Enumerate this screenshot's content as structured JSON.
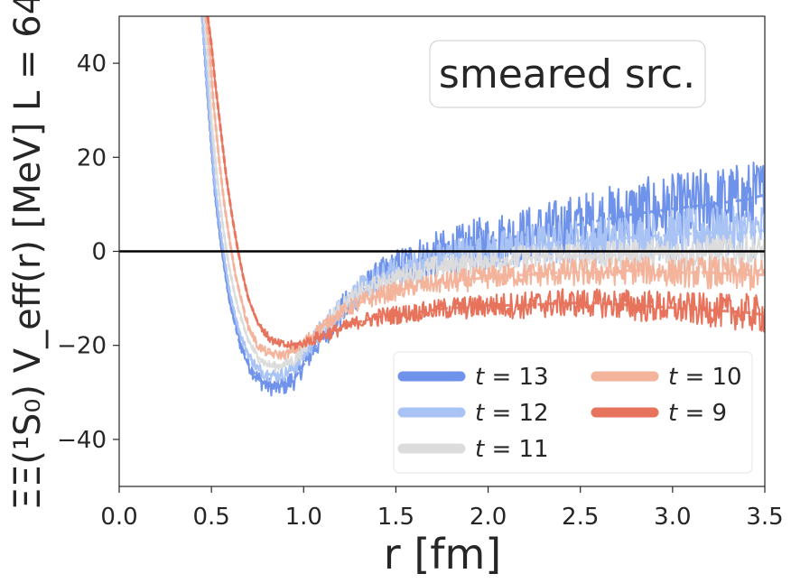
{
  "chart_data": {
    "type": "line",
    "xlabel": "r [fm]",
    "ylabel": "ΞΞ(¹S₀) V_eff(r) [MeV] L = 64",
    "xlim": [
      0.0,
      3.5
    ],
    "ylim": [
      -50,
      50
    ],
    "xticks": [
      "0.0",
      "0.5",
      "1.0",
      "1.5",
      "2.0",
      "2.5",
      "3.0",
      "3.5"
    ],
    "xtick_values": [
      0.0,
      0.5,
      1.0,
      1.5,
      2.0,
      2.5,
      3.0,
      3.5
    ],
    "yticks": [
      "−40",
      "−20",
      "0",
      "20",
      "40"
    ],
    "ytick_values": [
      -40,
      -20,
      0,
      20,
      40
    ],
    "reference_line_y": 0,
    "grid": false,
    "annotation": "smeared src.",
    "legend_position": "lower-right",
    "legend_columns": 2,
    "colors": {
      "t13": "#6f92ea",
      "t12": "#a9c3f5",
      "t11": "#dcdcdc",
      "t10": "#f4b39b",
      "t9": "#e7735c",
      "zero_line": "#000000",
      "axes": "#262626"
    },
    "series": [
      {
        "key": "t13",
        "name": "t = 13",
        "name_t": "t",
        "name_value": "13",
        "x": [
          0.45,
          0.47,
          0.5,
          0.52,
          0.55,
          0.58,
          0.6,
          0.65,
          0.7,
          0.75,
          0.8,
          0.85,
          0.9,
          0.95,
          1.0,
          1.1,
          1.2,
          1.3,
          1.4,
          1.5,
          1.6,
          1.7,
          1.8,
          1.9,
          2.0,
          2.2,
          2.4,
          2.6,
          2.8,
          3.0,
          3.2,
          3.4,
          3.5
        ],
        "y": [
          50,
          38,
          22,
          12,
          2,
          -6,
          -11,
          -19,
          -24,
          -27,
          -28.5,
          -29,
          -28.5,
          -27,
          -24,
          -18,
          -13,
          -9,
          -6,
          -4,
          -2,
          -1,
          0,
          1,
          2,
          3.5,
          5,
          6.5,
          8,
          9,
          10,
          11,
          12
        ],
        "noise": [
          0,
          0,
          0,
          0,
          0,
          0,
          0,
          1.5,
          1.5,
          2,
          2,
          2,
          2,
          2.5,
          2.5,
          3,
          3.5,
          3.5,
          4,
          4.5,
          5,
          5,
          5,
          5.5,
          6,
          6,
          6.5,
          7,
          7.5,
          7.5,
          8,
          8,
          8
        ]
      },
      {
        "key": "t12",
        "name": "t = 12",
        "name_t": "t",
        "name_value": "12",
        "x": [
          0.45,
          0.47,
          0.5,
          0.52,
          0.55,
          0.58,
          0.6,
          0.65,
          0.7,
          0.75,
          0.8,
          0.85,
          0.9,
          0.95,
          1.0,
          1.1,
          1.2,
          1.3,
          1.4,
          1.5,
          1.6,
          1.7,
          1.8,
          1.9,
          2.0,
          2.2,
          2.4,
          2.6,
          2.8,
          3.0,
          3.2,
          3.4,
          3.5
        ],
        "y": [
          50,
          40,
          24,
          14,
          4,
          -4,
          -9,
          -17,
          -22,
          -25,
          -26,
          -26.5,
          -26,
          -24.5,
          -22,
          -16.5,
          -12,
          -8.5,
          -6,
          -4.5,
          -3,
          -2,
          -1,
          -0.5,
          0,
          1,
          2,
          2.5,
          3,
          3.5,
          4,
          4,
          4.5
        ],
        "noise": [
          0,
          0,
          0,
          0,
          0,
          0,
          0,
          1,
          1,
          1.5,
          1.5,
          1.5,
          1.5,
          2,
          2,
          2.5,
          2.5,
          3,
          3,
          3.5,
          3.5,
          3.5,
          4,
          4,
          4,
          4.5,
          4.5,
          5,
          5,
          5.5,
          5.5,
          5.5,
          6
        ]
      },
      {
        "key": "t11",
        "name": "t = 11",
        "name_t": "t",
        "name_value": "11",
        "x": [
          0.46,
          0.48,
          0.5,
          0.53,
          0.56,
          0.59,
          0.62,
          0.65,
          0.7,
          0.75,
          0.8,
          0.85,
          0.9,
          0.95,
          1.0,
          1.1,
          1.2,
          1.3,
          1.4,
          1.5,
          1.6,
          1.7,
          1.8,
          1.9,
          2.0,
          2.2,
          2.4,
          2.6,
          2.8,
          3.0,
          3.2,
          3.4,
          3.5
        ],
        "y": [
          50,
          42,
          28,
          16,
          6,
          -2,
          -8,
          -13,
          -19,
          -22.5,
          -24,
          -24.5,
          -24,
          -23,
          -21,
          -16,
          -12,
          -9,
          -7,
          -5.5,
          -4.5,
          -3.5,
          -3,
          -2.5,
          -2,
          -1.5,
          -1,
          -1,
          -0.5,
          -0.5,
          0,
          0,
          0
        ],
        "noise": [
          0,
          0,
          0,
          0,
          0,
          0,
          0,
          0.5,
          1,
          1,
          1,
          1,
          1,
          1.5,
          1.5,
          1.5,
          2,
          2,
          2,
          2,
          2.5,
          2.5,
          2.5,
          2.5,
          2.5,
          3,
          3,
          3,
          3,
          3.5,
          3.5,
          3.5,
          3.5
        ]
      },
      {
        "key": "t10",
        "name": "t = 10",
        "name_t": "t",
        "name_value": "10",
        "x": [
          0.47,
          0.49,
          0.51,
          0.54,
          0.57,
          0.6,
          0.63,
          0.66,
          0.7,
          0.75,
          0.8,
          0.85,
          0.9,
          0.95,
          1.0,
          1.1,
          1.2,
          1.3,
          1.4,
          1.5,
          1.6,
          1.7,
          1.8,
          1.9,
          2.0,
          2.2,
          2.4,
          2.6,
          2.8,
          3.0,
          3.2,
          3.4,
          3.5
        ],
        "y": [
          50,
          43,
          32,
          20,
          10,
          2,
          -5,
          -10,
          -16,
          -20,
          -21.5,
          -22,
          -22,
          -21,
          -19.5,
          -16,
          -13,
          -11,
          -9.5,
          -8.5,
          -7.5,
          -7,
          -6.5,
          -6,
          -5.5,
          -5,
          -4.5,
          -4.5,
          -4,
          -4.5,
          -4.5,
          -5,
          -5
        ],
        "noise": [
          0,
          0,
          0,
          0,
          0,
          0,
          0,
          0.5,
          1,
          1,
          1,
          1,
          1,
          1,
          1.5,
          1.5,
          1.5,
          2,
          2,
          2,
          2,
          2,
          2.5,
          2.5,
          2.5,
          2.5,
          3,
          3,
          3,
          3,
          3.5,
          3.5,
          3.5
        ]
      },
      {
        "key": "t9",
        "name": "t = 9",
        "name_t": "t",
        "name_value": "9",
        "x": [
          0.48,
          0.5,
          0.52,
          0.55,
          0.58,
          0.61,
          0.64,
          0.67,
          0.7,
          0.75,
          0.8,
          0.85,
          0.9,
          0.95,
          1.0,
          1.1,
          1.2,
          1.3,
          1.4,
          1.5,
          1.6,
          1.7,
          1.8,
          1.9,
          2.0,
          2.2,
          2.4,
          2.6,
          2.8,
          3.0,
          3.2,
          3.4,
          3.5
        ],
        "y": [
          50,
          44,
          36,
          26,
          16,
          8,
          1,
          -5,
          -10,
          -15,
          -18,
          -19.5,
          -20,
          -20,
          -19.5,
          -18,
          -16.5,
          -15,
          -14,
          -13.5,
          -13,
          -12.5,
          -12,
          -12,
          -11.5,
          -11.5,
          -11,
          -11,
          -11.5,
          -12,
          -12.5,
          -13,
          -13.5
        ],
        "noise": [
          0,
          0,
          0,
          0,
          0,
          0,
          0,
          0,
          0.5,
          0.5,
          1,
          1,
          1,
          1,
          1,
          1.5,
          1.5,
          1.5,
          2,
          2,
          2,
          2,
          2.5,
          2.5,
          2.5,
          3,
          3,
          3,
          3.5,
          3.5,
          3.5,
          4,
          4
        ]
      }
    ],
    "legend_order": [
      "t13",
      "t10",
      "t12",
      "t9",
      "t11"
    ]
  }
}
